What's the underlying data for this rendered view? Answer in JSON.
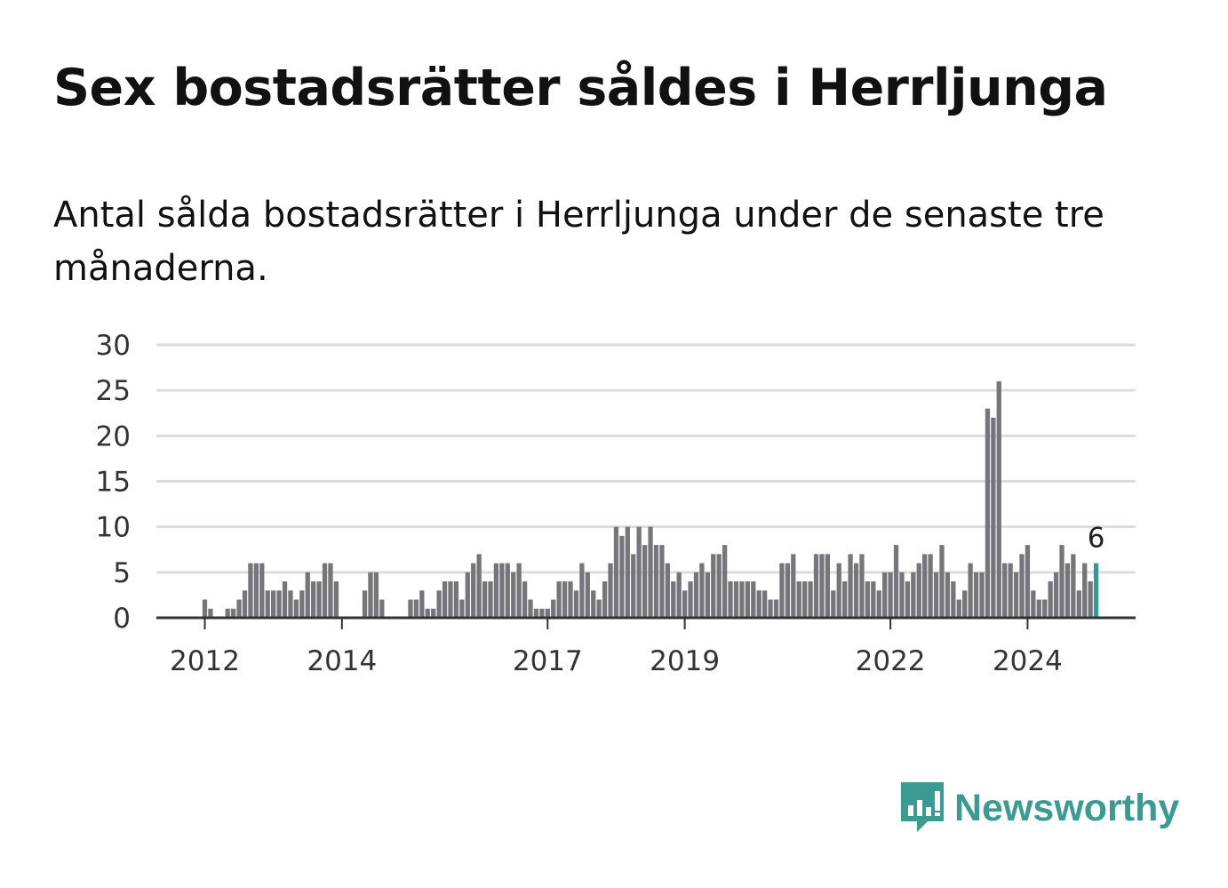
{
  "title": "Sex bostadsrätter såldes i Herrljunga",
  "subtitle": "Antal sålda bostadsrätter i Herrljunga under de senaste tre månaderna.",
  "brand": {
    "name": "Newsworthy",
    "icon": "newsworthy-logo-icon",
    "color": "#3a9b93"
  },
  "chart_data": {
    "type": "bar",
    "title": "Sex bostadsrätter såldes i Herrljunga",
    "subtitle": "Antal sålda bostadsrätter i Herrljunga under de senaste tre månaderna.",
    "xlabel": "",
    "ylabel": "",
    "ylim": [
      0,
      30
    ],
    "yticks": [
      "0",
      "5",
      "10",
      "15",
      "20",
      "25",
      "30"
    ],
    "xtick_labels": [
      {
        "label": "2012",
        "index": 0
      },
      {
        "label": "2014",
        "index": 24
      },
      {
        "label": "2017",
        "index": 60
      },
      {
        "label": "2019",
        "index": 84
      },
      {
        "label": "2022",
        "index": 120
      },
      {
        "label": "2024",
        "index": 144
      }
    ],
    "first_period": "2012-01",
    "bar_color": "#76757a",
    "highlight_color": "#2a9d96",
    "grid": true,
    "highlight_label": "6",
    "values": [
      2,
      1,
      0,
      0,
      1,
      1,
      2,
      3,
      6,
      6,
      6,
      3,
      3,
      3,
      4,
      3,
      2,
      3,
      5,
      4,
      4,
      6,
      6,
      4,
      0,
      0,
      0,
      0,
      3,
      5,
      5,
      2,
      0,
      0,
      0,
      0,
      2,
      2,
      3,
      1,
      1,
      3,
      4,
      4,
      4,
      2,
      5,
      6,
      7,
      4,
      4,
      6,
      6,
      6,
      5,
      6,
      4,
      2,
      1,
      1,
      1,
      2,
      4,
      4,
      4,
      3,
      6,
      5,
      3,
      2,
      4,
      6,
      10,
      9,
      10,
      7,
      10,
      8,
      10,
      8,
      8,
      6,
      4,
      5,
      3,
      4,
      5,
      6,
      5,
      7,
      7,
      8,
      4,
      4,
      4,
      4,
      4,
      3,
      3,
      2,
      2,
      6,
      6,
      7,
      4,
      4,
      4,
      7,
      7,
      7,
      3,
      6,
      4,
      7,
      6,
      7,
      4,
      4,
      3,
      5,
      5,
      8,
      5,
      4,
      5,
      6,
      7,
      7,
      5,
      8,
      5,
      4,
      2,
      3,
      6,
      5,
      5,
      23,
      22,
      26,
      6,
      6,
      5,
      7,
      8,
      3,
      2,
      2,
      4,
      5,
      8,
      6,
      7,
      3,
      6,
      4,
      6
    ]
  }
}
